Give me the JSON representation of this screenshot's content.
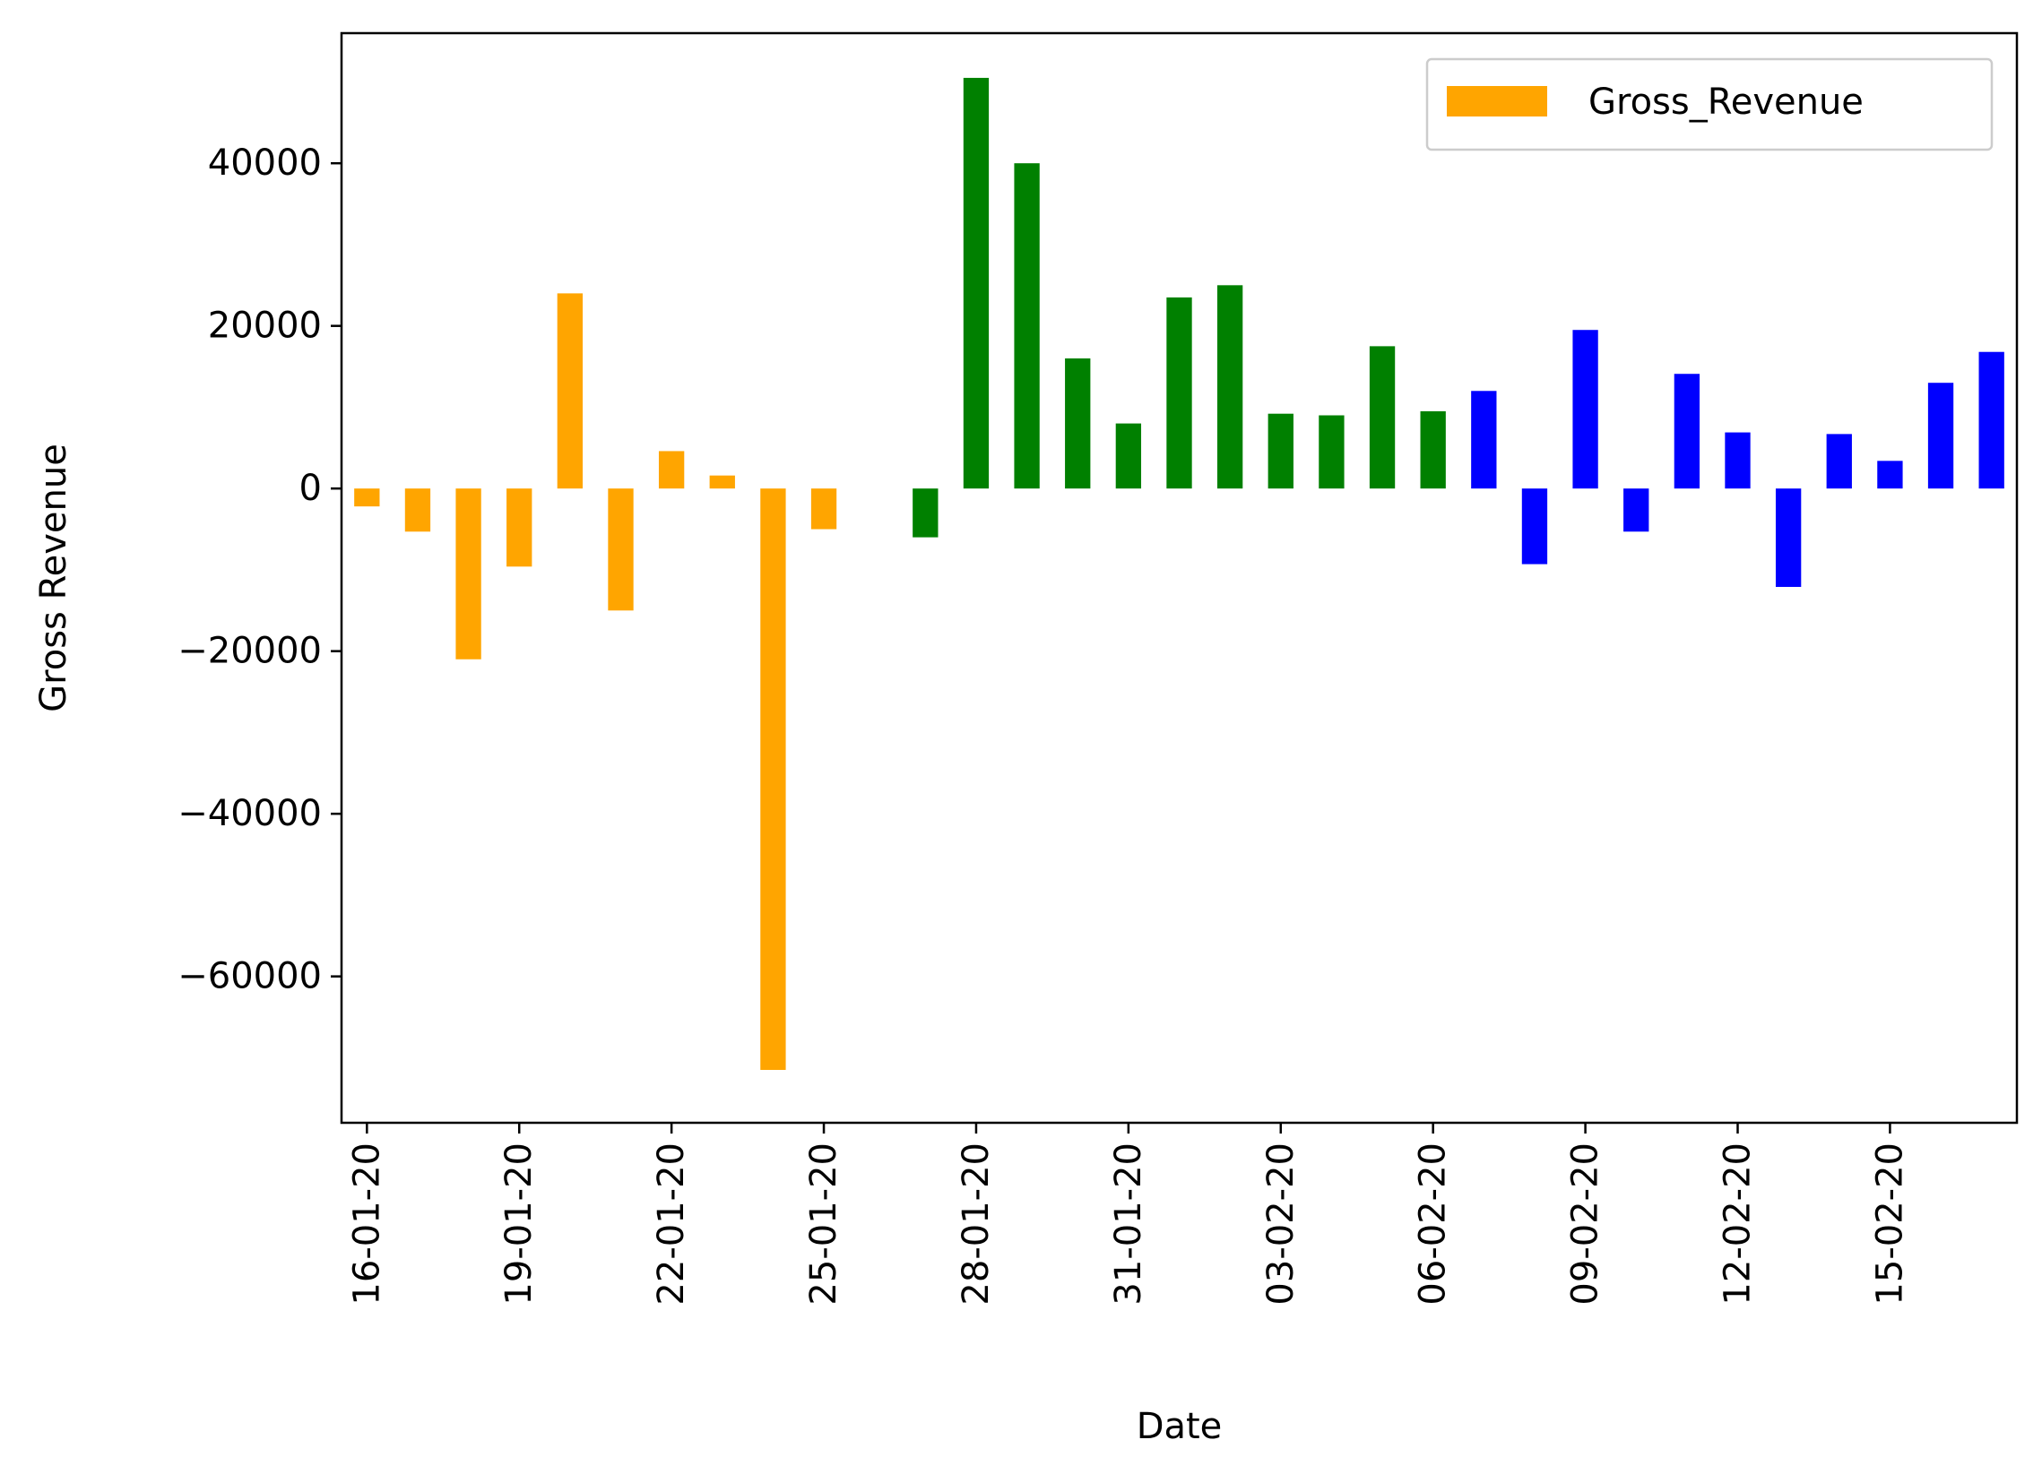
{
  "chart_data": {
    "type": "bar",
    "title": "",
    "xlabel": "Date",
    "ylabel": "Gross Revenue",
    "ylim": [
      -78000,
      56000
    ],
    "yticks": [
      -60000,
      -40000,
      -20000,
      0,
      20000,
      40000
    ],
    "ytick_labels": [
      "−60000",
      "−40000",
      "−20000",
      "0",
      "20000",
      "40000"
    ],
    "grid": false,
    "legend": {
      "position": "top-right",
      "entries": [
        {
          "label": "Gross_Revenue",
          "color": "#ffa500"
        }
      ]
    },
    "categories": [
      "16-01-20",
      "17-01-20",
      "18-01-20",
      "19-01-20",
      "20-01-20",
      "21-01-20",
      "22-01-20",
      "23-01-20",
      "24-01-20",
      "25-01-20",
      "26-01-20",
      "27-01-20",
      "28-01-20",
      "29-01-20",
      "30-01-20",
      "31-01-20",
      "01-02-20",
      "02-02-20",
      "03-02-20",
      "04-02-20",
      "05-02-20",
      "06-02-20",
      "07-02-20",
      "08-02-20",
      "09-02-20",
      "10-02-20",
      "11-02-20",
      "12-02-20",
      "13-02-20",
      "14-02-20",
      "15-02-20",
      "16-02-20",
      "17-02-20"
    ],
    "xtick_labels_shown": [
      "16-01-20",
      "19-01-20",
      "22-01-20",
      "25-01-20",
      "28-01-20",
      "31-01-20",
      "03-02-20",
      "06-02-20",
      "09-02-20",
      "12-02-20",
      "15-02-20"
    ],
    "series": [
      {
        "name": "Gross_Revenue",
        "values": [
          -2200,
          -5300,
          -21000,
          -9600,
          24000,
          -15000,
          4600,
          1600,
          -71500,
          -5000,
          0,
          -6000,
          50500,
          40000,
          16000,
          8000,
          23500,
          25000,
          9200,
          9000,
          17500,
          9500,
          12000,
          -9300,
          19500,
          -5300,
          14100,
          6900,
          -12100,
          6700,
          3400,
          13000,
          16800
        ],
        "colors": [
          "#ffa500",
          "#ffa500",
          "#ffa500",
          "#ffa500",
          "#ffa500",
          "#ffa500",
          "#ffa500",
          "#ffa500",
          "#ffa500",
          "#ffa500",
          "#ffa500",
          "#008000",
          "#008000",
          "#008000",
          "#008000",
          "#008000",
          "#008000",
          "#008000",
          "#008000",
          "#008000",
          "#008000",
          "#008000",
          "#0000ff",
          "#0000ff",
          "#0000ff",
          "#0000ff",
          "#0000ff",
          "#0000ff",
          "#0000ff",
          "#0000ff",
          "#0000ff",
          "#0000ff",
          "#0000ff"
        ]
      }
    ]
  }
}
